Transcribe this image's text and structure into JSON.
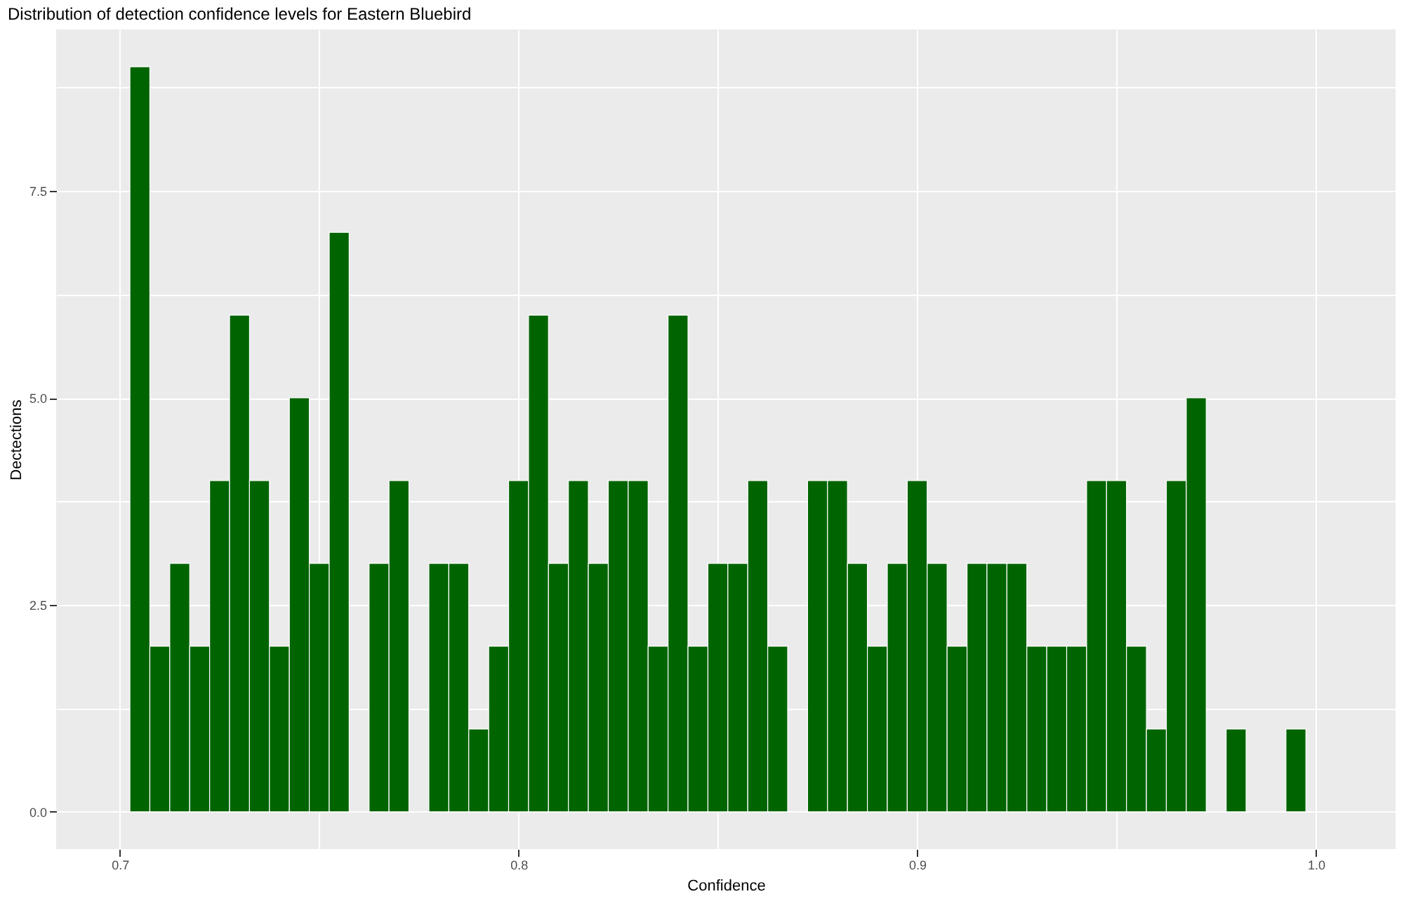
{
  "chart_data": {
    "type": "histogram",
    "title": "Distribution of detection confidence levels for Eastern Bluebird",
    "xlabel": "Confidence",
    "ylabel": "Dectections",
    "color": "#006400",
    "bins": [
      0.7025,
      0.7075,
      0.7125,
      0.7175,
      0.7225,
      0.7275,
      0.7325,
      0.7375,
      0.7425,
      0.7475,
      0.7525,
      0.7575,
      0.7625,
      0.7675,
      0.7725,
      0.7775,
      0.7825,
      0.7875,
      0.7925,
      0.7975,
      0.8025,
      0.8075,
      0.8125,
      0.8175,
      0.8225,
      0.8275,
      0.8325,
      0.8375,
      0.8425,
      0.8475,
      0.8525,
      0.8575,
      0.8625,
      0.8675,
      0.8725,
      0.8775,
      0.8825,
      0.8875,
      0.8925,
      0.8975,
      0.9025,
      0.9075,
      0.9125,
      0.9175,
      0.9225,
      0.9275,
      0.9325,
      0.9375,
      0.9425,
      0.9475,
      0.9525,
      0.9575,
      0.9625,
      0.9675,
      0.9725,
      0.9775,
      0.9825,
      0.9875,
      0.9925,
      0.9975
    ],
    "values": [
      9,
      2,
      3,
      2,
      4,
      6,
      4,
      2,
      5,
      3,
      7,
      0,
      3,
      4,
      0,
      3,
      3,
      1,
      2,
      4,
      6,
      3,
      4,
      3,
      4,
      4,
      2,
      6,
      2,
      3,
      3,
      4,
      2,
      0,
      4,
      4,
      3,
      2,
      3,
      4,
      3,
      2,
      3,
      3,
      3,
      2,
      2,
      2,
      4,
      4,
      2,
      1,
      4,
      5,
      0,
      1,
      0,
      0,
      1
    ],
    "xlim": [
      0.684,
      1.02
    ],
    "xticks": [
      0.7,
      {
        "value": 0.75,
        "label": null
      },
      0.8,
      {
        "value": 0.85,
        "label": null
      },
      0.9,
      {
        "value": 0.95,
        "label": null
      },
      {
        "value": 1.0,
        "label": "1.0"
      }
    ],
    "ylim": [
      -0.45,
      9.45
    ],
    "yticks": [
      {
        "value": 0,
        "label": "0.0"
      },
      {
        "value": 1.25,
        "label": null
      },
      2.5,
      {
        "value": 3.75,
        "label": null
      },
      {
        "value": 5,
        "label": "5.0"
      },
      {
        "value": 6.25,
        "label": null
      },
      7.5,
      {
        "value": 8.75,
        "label": null
      }
    ],
    "grid": true
  }
}
